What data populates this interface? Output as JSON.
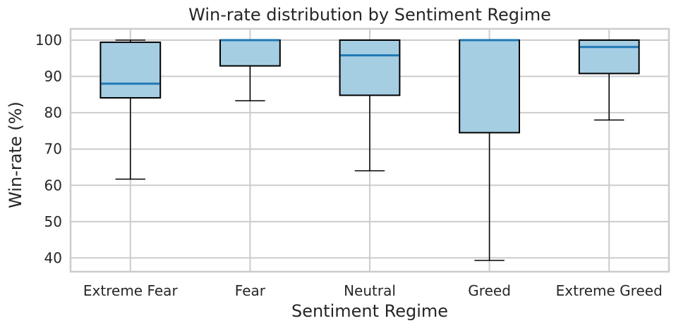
{
  "chart_data": {
    "type": "box",
    "title": "Win-rate distribution by Sentiment Regime",
    "xlabel": "Sentiment Regime",
    "ylabel": "Win-rate (%)",
    "categories": [
      "Extreme Fear",
      "Fear",
      "Neutral",
      "Greed",
      "Extreme Greed"
    ],
    "boxes": [
      {
        "category": "Extreme Fear",
        "whisker_low": 61.7,
        "q1": 84.1,
        "median": 88.0,
        "q3": 99.4,
        "whisker_high": 100.0
      },
      {
        "category": "Fear",
        "whisker_low": 83.3,
        "q1": 92.9,
        "median": 100.0,
        "q3": 100.0,
        "whisker_high": 100.0
      },
      {
        "category": "Neutral",
        "whisker_low": 64.0,
        "q1": 84.8,
        "median": 95.8,
        "q3": 100.0,
        "whisker_high": 100.0
      },
      {
        "category": "Greed",
        "whisker_low": 39.3,
        "q1": 74.5,
        "median": 100.0,
        "q3": 100.0,
        "whisker_high": 100.0
      },
      {
        "category": "Extreme Greed",
        "whisker_low": 78.0,
        "q1": 90.8,
        "median": 98.1,
        "q3": 100.0,
        "whisker_high": 100.0
      }
    ],
    "yticks": [
      40,
      50,
      60,
      70,
      80,
      90,
      100
    ],
    "ylim": [
      36.2,
      103.1
    ],
    "grid": true,
    "colors": {
      "box_fill": "#a6cee3",
      "box_edge": "#000000",
      "median": "#1f78b4",
      "whisker": "#000000",
      "grid": "#cccccc",
      "frame": "#cccccc"
    }
  }
}
